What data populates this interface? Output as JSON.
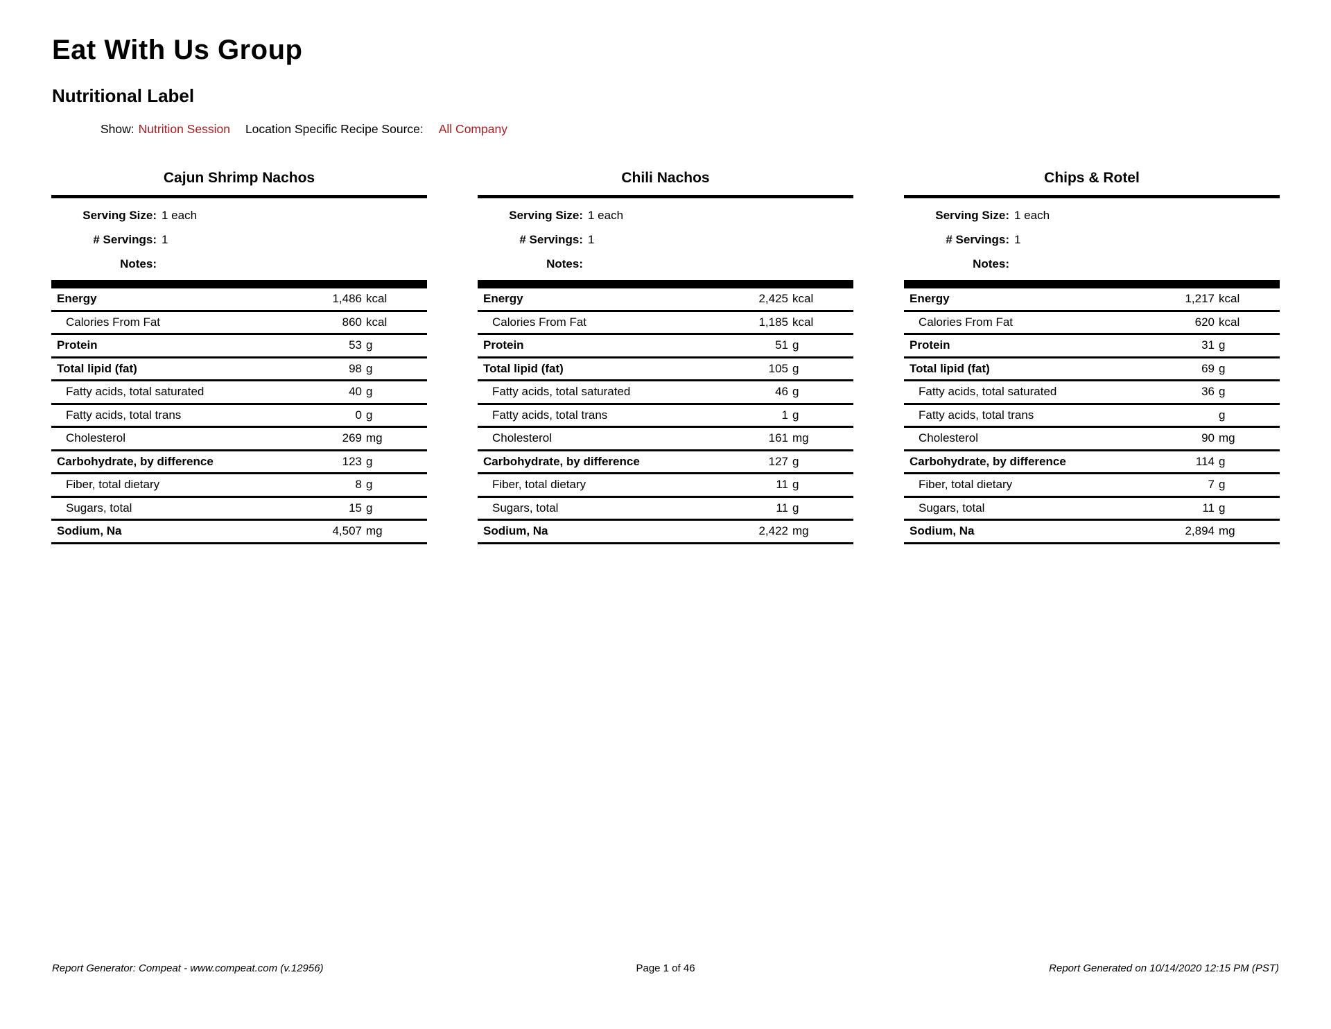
{
  "colors": {
    "accent_red": "#a11e22",
    "text": "#000000",
    "background": "#ffffff"
  },
  "header": {
    "company": "Eat With Us Group",
    "report_title": "Nutritional Label",
    "show_label": "Show:",
    "show_value": "Nutrition Session",
    "source_label": "Location Specific Recipe Source:",
    "source_value": "All Company"
  },
  "fields": {
    "serving_size_label": "Serving Size:",
    "servings_label": "# Servings:",
    "notes_label": "Notes:"
  },
  "tables": [
    {
      "title": "Cajun Shrimp Nachos",
      "serving_size": "1 each",
      "servings": "1",
      "notes": "",
      "rows": [
        {
          "label": "Energy",
          "value": "1,486",
          "unit": "kcal",
          "indent": false
        },
        {
          "label": "Calories From Fat",
          "value": "860",
          "unit": "kcal",
          "indent": true
        },
        {
          "label": "Protein",
          "value": "53",
          "unit": "g",
          "indent": false
        },
        {
          "label": "Total lipid (fat)",
          "value": "98",
          "unit": "g",
          "indent": false
        },
        {
          "label": "Fatty acids, total saturated",
          "value": "40",
          "unit": "g",
          "indent": true
        },
        {
          "label": "Fatty acids, total trans",
          "value": "0",
          "unit": "g",
          "indent": true
        },
        {
          "label": "Cholesterol",
          "value": "269",
          "unit": "mg",
          "indent": true
        },
        {
          "label": "Carbohydrate, by difference",
          "value": "123",
          "unit": "g",
          "indent": false
        },
        {
          "label": "Fiber, total dietary",
          "value": "8",
          "unit": "g",
          "indent": true
        },
        {
          "label": "Sugars, total",
          "value": "15",
          "unit": "g",
          "indent": true
        },
        {
          "label": "Sodium, Na",
          "value": "4,507",
          "unit": "mg",
          "indent": false
        }
      ]
    },
    {
      "title": "Chili Nachos",
      "serving_size": "1 each",
      "servings": "1",
      "notes": "",
      "rows": [
        {
          "label": "Energy",
          "value": "2,425",
          "unit": "kcal",
          "indent": false
        },
        {
          "label": "Calories From Fat",
          "value": "1,185",
          "unit": "kcal",
          "indent": true
        },
        {
          "label": "Protein",
          "value": "51",
          "unit": "g",
          "indent": false
        },
        {
          "label": "Total lipid (fat)",
          "value": "105",
          "unit": "g",
          "indent": false
        },
        {
          "label": "Fatty acids, total saturated",
          "value": "46",
          "unit": "g",
          "indent": true
        },
        {
          "label": "Fatty acids, total trans",
          "value": "1",
          "unit": "g",
          "indent": true
        },
        {
          "label": "Cholesterol",
          "value": "161",
          "unit": "mg",
          "indent": true
        },
        {
          "label": "Carbohydrate, by difference",
          "value": "127",
          "unit": "g",
          "indent": false
        },
        {
          "label": "Fiber, total dietary",
          "value": "11",
          "unit": "g",
          "indent": true
        },
        {
          "label": "Sugars, total",
          "value": "11",
          "unit": "g",
          "indent": true
        },
        {
          "label": "Sodium, Na",
          "value": "2,422",
          "unit": "mg",
          "indent": false
        }
      ]
    },
    {
      "title": "Chips & Rotel",
      "serving_size": "1 each",
      "servings": "1",
      "notes": "",
      "rows": [
        {
          "label": "Energy",
          "value": "1,217",
          "unit": "kcal",
          "indent": false
        },
        {
          "label": "Calories From Fat",
          "value": "620",
          "unit": "kcal",
          "indent": true
        },
        {
          "label": "Protein",
          "value": "31",
          "unit": "g",
          "indent": false
        },
        {
          "label": "Total lipid (fat)",
          "value": "69",
          "unit": "g",
          "indent": false
        },
        {
          "label": "Fatty acids, total saturated",
          "value": "36",
          "unit": "g",
          "indent": true
        },
        {
          "label": "Fatty acids, total trans",
          "value": "",
          "unit": "g",
          "indent": true
        },
        {
          "label": "Cholesterol",
          "value": "90",
          "unit": "mg",
          "indent": true
        },
        {
          "label": "Carbohydrate, by difference",
          "value": "114",
          "unit": "g",
          "indent": false
        },
        {
          "label": "Fiber, total dietary",
          "value": "7",
          "unit": "g",
          "indent": true
        },
        {
          "label": "Sugars, total",
          "value": "11",
          "unit": "g",
          "indent": true
        },
        {
          "label": "Sodium, Na",
          "value": "2,894",
          "unit": "mg",
          "indent": false
        }
      ]
    }
  ],
  "footer": {
    "left": "Report Generator: Compeat - www.compeat.com (v.12956)",
    "center": "Page 1 of 46",
    "right": "Report Generated on 10/14/2020 12:15 PM (PST)"
  }
}
